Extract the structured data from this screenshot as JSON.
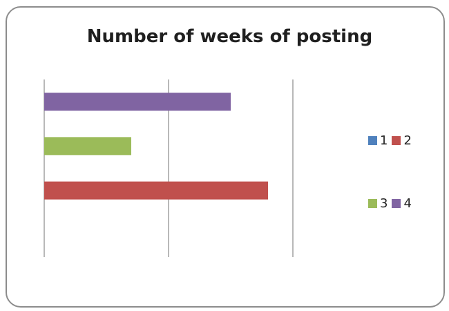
{
  "chart_data": {
    "type": "bar",
    "orientation": "horizontal",
    "title": "Number of weeks of posting",
    "categories": [
      "1",
      "2",
      "3",
      "4"
    ],
    "values": [
      0,
      9,
      3.5,
      7.5
    ],
    "xlim": [
      0,
      10
    ],
    "grid": true,
    "tick_labels_visible": false,
    "legend": {
      "placement": "right",
      "entries": [
        {
          "label": "1",
          "color": "#4f81bd"
        },
        {
          "label": "2",
          "color": "#c0504d"
        },
        {
          "label": "3",
          "color": "#9bbb59"
        },
        {
          "label": "4",
          "color": "#8064a2"
        }
      ]
    }
  }
}
